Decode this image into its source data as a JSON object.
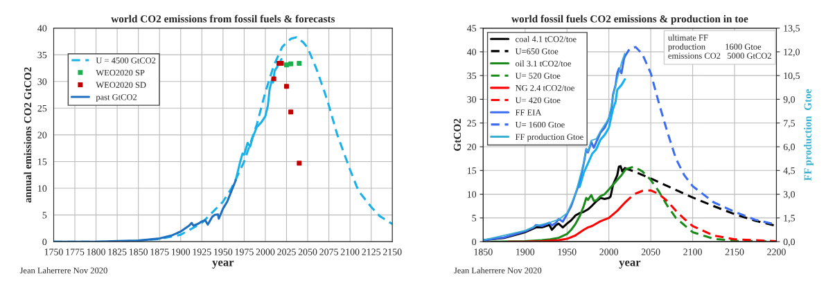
{
  "chart_data": [
    {
      "type": "line",
      "title": "world CO2 emissions from fossil fuels & forecasts",
      "xlabel": "year",
      "ylabel": "annual emissions CO2 GtCO2",
      "xlim": [
        1750,
        2150
      ],
      "xticks": [
        1750,
        1775,
        1800,
        1825,
        1850,
        1875,
        1900,
        1925,
        1950,
        1975,
        2000,
        2025,
        2050,
        2075,
        2100,
        2125,
        2150
      ],
      "ylim": [
        0,
        40
      ],
      "yticks": [
        0,
        5,
        10,
        15,
        20,
        25,
        30,
        35,
        40
      ],
      "grid": true,
      "legend": "top left",
      "annotations": [
        "Jean Laherrere Nov 2020"
      ],
      "series": [
        {
          "name": "U = 4500 GtCO2",
          "color": "#1ab0e8",
          "line_style": "dashed",
          "x": [
            1750,
            1800,
            1825,
            1850,
            1875,
            1900,
            1925,
            1950,
            1960,
            1975,
            1990,
            2000,
            2010,
            2020,
            2030,
            2037,
            2045,
            2050,
            2060,
            2070,
            2075,
            2085,
            2100,
            2110,
            2125,
            2135,
            2150
          ],
          "values": [
            0,
            0,
            0,
            0.2,
            0.5,
            1.3,
            3.5,
            7.5,
            10,
            15,
            22,
            28,
            33,
            36.5,
            38,
            38.3,
            37.3,
            36.3,
            32.5,
            28,
            25.5,
            20,
            13.5,
            9.5,
            6.5,
            4.8,
            3.3
          ]
        },
        {
          "name": "WEO2020 SP",
          "type": "scatter",
          "marker": "square",
          "color": "#1eb050",
          "x": [
            2025,
            2030,
            2040
          ],
          "values": [
            33.1,
            33.3,
            33.4
          ]
        },
        {
          "name": "WEO2020 SD",
          "type": "scatter",
          "marker": "square",
          "color": "#c00000",
          "x": [
            2010,
            2016,
            2019,
            2025,
            2030,
            2040
          ],
          "values": [
            30.5,
            33.4,
            33.4,
            29.1,
            24.3,
            14.7
          ]
        },
        {
          "color": "#1ab0e8",
          "x": [
            1965,
            1970,
            1973,
            1975,
            1979,
            1982,
            1985,
            1990,
            1995,
            2000,
            2003,
            2005,
            2008,
            2009,
            2011,
            2015,
            2019
          ],
          "values": [
            11.5,
            14.8,
            16.5,
            16.3,
            18.5,
            17.8,
            19.5,
            21.5,
            22.3,
            23.5,
            25.5,
            28.5,
            30.5,
            29.8,
            32,
            33,
            34.2
          ]
        },
        {
          "name": "past GtCO2",
          "color": "#1f6fc0",
          "x": [
            1750,
            1800,
            1825,
            1850,
            1875,
            1890,
            1900,
            1910,
            1913,
            1915,
            1920,
            1925,
            1929,
            1932,
            1937,
            1940,
            1944,
            1945,
            1950,
            1955,
            1960,
            1965
          ],
          "values": [
            0,
            0,
            0.1,
            0.2,
            0.6,
            1.2,
            1.9,
            3,
            3.5,
            3,
            3.3,
            3.8,
            4,
            3.2,
            4.6,
            5,
            5.1,
            4.3,
            6.2,
            7.5,
            9.5,
            11.5
          ]
        }
      ]
    },
    {
      "type": "line",
      "title": "world fossil fuels CO2 emissions & production in toe",
      "xlabel": "year",
      "ylabel": "GtCO2",
      "y2label": "FF production  Gtoe",
      "xlim": [
        1850,
        2200
      ],
      "xticks": [
        1850,
        1900,
        1950,
        2000,
        2050,
        2100,
        2150,
        2200
      ],
      "ylim": [
        0,
        45
      ],
      "yticks": [
        0,
        5,
        10,
        15,
        20,
        25,
        30,
        35,
        40,
        45
      ],
      "y2lim": [
        0,
        13.5
      ],
      "y2ticks": [
        {
          "value": 0,
          "label": "0,0"
        },
        {
          "value": 1.5,
          "label": "1,5"
        },
        {
          "value": 3,
          "label": "3,0"
        },
        {
          "value": 4.5,
          "label": "4,5"
        },
        {
          "value": 6,
          "label": "6,0"
        },
        {
          "value": 7.5,
          "label": "7,5"
        },
        {
          "value": 9,
          "label": "9,0"
        },
        {
          "value": 10.5,
          "label": "10,5"
        },
        {
          "value": 12,
          "label": "12,0"
        },
        {
          "value": 13.5,
          "label": "13,5"
        }
      ],
      "grid": true,
      "legend": "top left",
      "annotations": [
        "ultimate FF\nproduction         1600 Gtoe\nemissions CO2   5000 GtCO2",
        "Jean Laherrere Nov 2020"
      ],
      "series": [
        {
          "name": "coal 4.1 tCO2/toe",
          "color": "#000000",
          "x": [
            1850,
            1875,
            1900,
            1913,
            1920,
            1929,
            1932,
            1937,
            1940,
            1945,
            1950,
            1955,
            1960,
            1965,
            1970,
            1975,
            1980,
            1985,
            1990,
            1995,
            2000,
            2002,
            2005,
            2010,
            2012,
            2014,
            2016,
            2019
          ],
          "values": [
            0.3,
            0.8,
            2,
            3,
            3,
            3.5,
            2.5,
            3.5,
            3.8,
            3,
            3.8,
            4.5,
            5.5,
            6,
            6.3,
            6.8,
            7.6,
            8.5,
            9.2,
            9,
            9.2,
            9.5,
            12,
            14,
            15.8,
            15.9,
            14.8,
            15.5
          ]
        },
        {
          "name": "U=650 Gtoe",
          "color": "#000000",
          "line_style": "dashed",
          "x": [
            2019,
            2030,
            2050,
            2075,
            2100,
            2125,
            2150,
            2175,
            2200
          ],
          "values": [
            15.5,
            14.8,
            13.3,
            11.3,
            9.3,
            7.5,
            5.8,
            4.4,
            3.3
          ]
        },
        {
          "name": "oil 3.1 tCO2/toe",
          "color": "#1a8a1a",
          "x": [
            1860,
            1900,
            1920,
            1930,
            1940,
            1950,
            1955,
            1960,
            1965,
            1970,
            1973,
            1975,
            1979,
            1982,
            1985,
            1990,
            1995,
            2000,
            2005,
            2010,
            2015,
            2019
          ],
          "values": [
            0,
            0.1,
            0.3,
            0.5,
            0.8,
            1.6,
            2.5,
            3.7,
            5.3,
            7.5,
            9.2,
            8.8,
            9.8,
            8.6,
            8.7,
            9.6,
            10,
            11,
            12,
            13,
            14,
            15
          ]
        },
        {
          "name": "U= 520 Gtoe",
          "color": "#1a8a1a",
          "line_style": "dashed",
          "x": [
            2019,
            2030,
            2040,
            2050,
            2060,
            2070,
            2080,
            2100,
            2125,
            2150,
            2200
          ],
          "values": [
            15.2,
            15.8,
            14.8,
            13,
            10.5,
            7.5,
            5,
            2,
            0.6,
            0.2,
            0
          ]
        },
        {
          "name": "NG 2.4 tCO2/toe",
          "color": "#ff0000",
          "x": [
            1880,
            1900,
            1920,
            1940,
            1950,
            1960,
            1970,
            1975,
            1980,
            1990,
            2000,
            2010,
            2019
          ],
          "values": [
            0,
            0,
            0.1,
            0.3,
            0.6,
            1.3,
            2.5,
            3,
            3.3,
            4.3,
            5,
            6.5,
            8.2
          ]
        },
        {
          "name": "U= 420 Gtoe",
          "color": "#ff0000",
          "line_style": "dashed",
          "x": [
            2019,
            2030,
            2040,
            2050,
            2060,
            2070,
            2080,
            2090,
            2100,
            2125,
            2150,
            2200
          ],
          "values": [
            8.2,
            10,
            10.7,
            10.8,
            10,
            8.5,
            6.5,
            4.8,
            3.3,
            1.3,
            0.5,
            0.1
          ]
        },
        {
          "name": "FF EIA",
          "color": "#3c6cf0",
          "x": [
            1850,
            1875,
            1900,
            1910,
            1913,
            1920,
            1929,
            1932,
            1937,
            1940,
            1945,
            1950,
            1955,
            1960,
            1965,
            1970,
            1973,
            1975,
            1979,
            1982,
            1985,
            1990,
            1995,
            2000,
            2003,
            2005,
            2008,
            2010,
            2012,
            2015,
            2018,
            2019
          ],
          "values": [
            0.3,
            0.9,
            2.2,
            3,
            3.5,
            3.3,
            4,
            3.4,
            4,
            4.8,
            4.2,
            5.8,
            7.5,
            10,
            12.5,
            16.5,
            19.5,
            18.8,
            21,
            19.8,
            21,
            23,
            24,
            26,
            28,
            31,
            33,
            35.5,
            36.5,
            35.5,
            38.5,
            39
          ]
        },
        {
          "name": "U= 1600 Gtoe",
          "color": "#3c6cf0",
          "line_style": "dashed",
          "x": [
            2019,
            2025,
            2032,
            2040,
            2050,
            2060,
            2070,
            2080,
            2090,
            2100,
            2125,
            2150,
            2175,
            2200
          ],
          "values": [
            39,
            40.7,
            41,
            39.5,
            35.5,
            29,
            23,
            17.5,
            14,
            11.7,
            8.3,
            6.3,
            4.6,
            3.6
          ]
        },
        {
          "color": "#12b0f0",
          "x": [
            1965,
            1970,
            1975,
            1980,
            1985,
            1990,
            1995,
            2000,
            2005,
            2008,
            2010,
            2015,
            2019
          ],
          "values": [
            11.5,
            14.5,
            16.5,
            18.5,
            19.5,
            21.5,
            22.5,
            24,
            28,
            29.5,
            32,
            33,
            34.2
          ]
        },
        {
          "name": "FF production Gtoe",
          "color": "#3ab0d0",
          "axis": "y2",
          "x": [
            1850,
            1900,
            1913,
            1929,
            1940,
            1950,
            1960,
            1970,
            1973,
            1975,
            1979,
            1985,
            1990,
            2000,
            2005,
            2010,
            2015,
            2019
          ],
          "values": [
            0.1,
            0.7,
            1.0,
            1.2,
            1.4,
            1.8,
            3.0,
            5.0,
            5.9,
            5.7,
            6.4,
            6.5,
            7.0,
            7.8,
            9.2,
            10.3,
            11.3,
            11.9
          ]
        }
      ]
    }
  ]
}
